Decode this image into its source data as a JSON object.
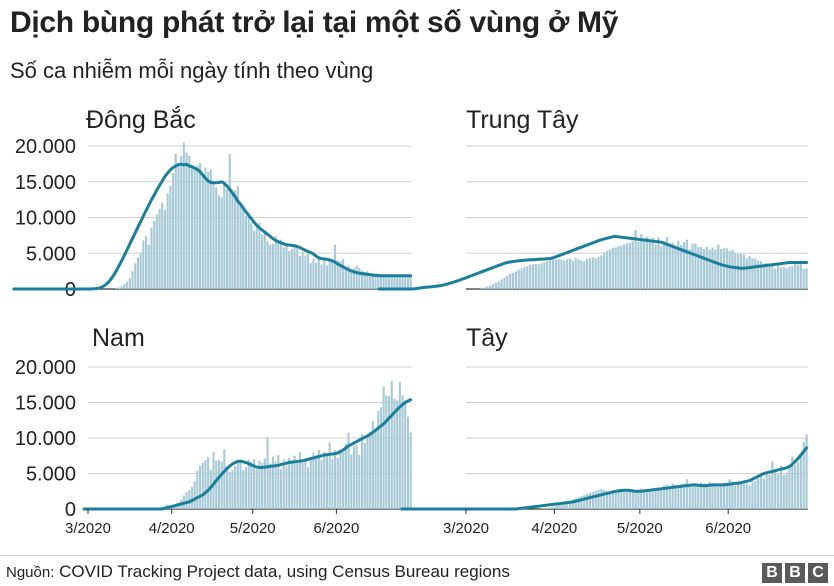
{
  "title": "Dịch bùng phát trở lại tại một số vùng ở Mỹ",
  "subtitle": "Số ca nhiễm mỗi ngày tính theo vùng",
  "source_label": "Nguồn:",
  "source_text": "COVID Tracking Project data, using Census Bureau regions",
  "logo_text": [
    "B",
    "B",
    "C"
  ],
  "colors": {
    "bar": "#a8cad6",
    "line": "#1a7f9c",
    "grid": "#d0d0d0",
    "axis": "#333333"
  },
  "chart_data": [
    {
      "type": "bar",
      "title": "Đông Bắc",
      "ylim": [
        0,
        20000
      ],
      "yticks": [
        "20.000",
        "15.000",
        "10.000",
        "5.000",
        "0"
      ],
      "xticks": [],
      "bars": [
        0,
        0,
        0,
        0,
        0,
        0,
        0,
        0,
        0,
        0,
        100,
        200,
        400,
        700,
        1000,
        1500,
        2500,
        3600,
        4400,
        5100,
        6800,
        7400,
        6200,
        8600,
        9500,
        10400,
        11200,
        12100,
        11000,
        13400,
        14400,
        16200,
        18900,
        17300,
        18600,
        20500,
        19100,
        18600,
        17000,
        16700,
        17300,
        17600,
        16200,
        17000,
        16400,
        16700,
        15000,
        14200,
        13100,
        12800,
        14900,
        14000,
        18900,
        13900,
        13800,
        14400,
        12000,
        11300,
        10200,
        10700,
        9300,
        8100,
        8600,
        9300,
        7600,
        7900,
        6700,
        6200,
        6300,
        7400,
        6700,
        6900,
        5800,
        6400,
        5300,
        5600,
        6100,
        5700,
        4600,
        5200,
        4700,
        5000,
        3600,
        4200,
        3700,
        4600,
        3400,
        4300,
        3300,
        4100,
        3800,
        6200,
        4000,
        3900,
        4200,
        3000,
        3300,
        2700,
        2900,
        3300,
        3000,
        2600,
        2400,
        2500,
        2200,
        2200,
        2100,
        2000,
        1900,
        2000,
        1800,
        1900,
        1900,
        1900,
        2000,
        1800,
        1800,
        1700,
        1800,
        1700
      ],
      "trend": [
        0,
        0,
        0,
        0,
        0,
        0,
        0,
        0,
        0,
        0,
        0,
        0,
        0,
        0,
        0,
        0,
        0,
        0,
        0,
        0,
        0,
        0,
        0,
        0,
        0,
        0,
        0,
        0,
        0,
        10,
        30,
        80,
        170,
        330,
        580,
        930,
        1380,
        1930,
        2550,
        3240,
        3980,
        4740,
        5520,
        6300,
        7090,
        7880,
        8650,
        9420,
        10190,
        10970,
        11720,
        12460,
        13150,
        13830,
        14500,
        15130,
        15730,
        16210,
        16630,
        17000,
        17200,
        17400,
        17450,
        17350,
        17420,
        17200,
        17100,
        16900,
        16700,
        16400,
        15950,
        15500,
        15100,
        14900,
        14850,
        14860,
        14900,
        15000,
        14750,
        14400,
        13950,
        13400,
        12900,
        12300,
        11850,
        11300,
        10800,
        10300,
        9850,
        9350,
        8900,
        8550,
        8250,
        7950,
        7650,
        7350,
        7050,
        6800,
        6600,
        6450,
        6300,
        6200,
        6150,
        6100,
        6050,
        5950,
        5800,
        5600,
        5400,
        5250,
        5100,
        4900,
        4600,
        4350,
        4250,
        4200,
        4150,
        4050,
        3950,
        3750,
        3500,
        3300,
        3100,
        2900,
        2700,
        2550,
        2400,
        2300,
        2200,
        2150,
        2100,
        2050,
        2000,
        1950,
        1900,
        1900,
        1850,
        1850,
        1850,
        1850,
        1850,
        1850,
        1850,
        1850,
        1850,
        1850,
        1850,
        1850
      ]
    },
    {
      "type": "bar",
      "title": "Trung Tây",
      "ylim": [
        0,
        20000
      ],
      "yticks": [],
      "xticks": [],
      "bars": [
        0,
        0,
        0,
        0,
        0,
        100,
        200,
        350,
        500,
        700,
        900,
        1100,
        1350,
        1600,
        1850,
        2100,
        2250,
        2450,
        2700,
        2900,
        3100,
        3200,
        3350,
        3450,
        3500,
        3450,
        3600,
        3700,
        3900,
        4000,
        4100,
        4150,
        4200,
        4100,
        4000,
        4150,
        4250,
        3950,
        4300,
        4150,
        4000,
        3900,
        4200,
        4300,
        4450,
        4300,
        4500,
        4700,
        5100,
        5300,
        5550,
        5750,
        5800,
        6000,
        6100,
        6250,
        6400,
        6500,
        6750,
        8250,
        6600,
        7700,
        6900,
        7300,
        6800,
        7150,
        6250,
        7200,
        6000,
        6500,
        7300,
        6400,
        6500,
        5800,
        6750,
        6150,
        6550,
        6900,
        5600,
        6350,
        6400,
        5900,
        5850,
        5600,
        5900,
        5500,
        5800,
        5500,
        6200,
        5600,
        5700,
        5700,
        5300,
        5500,
        5100,
        4900,
        4900,
        4800,
        4300,
        4600,
        4300,
        4300,
        4000,
        3900,
        3600,
        3600,
        3400,
        3300,
        2800,
        3300,
        3000,
        3100,
        2900,
        3100,
        3200,
        3500,
        3400,
        3600,
        2800,
        2900
      ],
      "trend": [
        0,
        0,
        0,
        0,
        0,
        0,
        0,
        0,
        0,
        0,
        0,
        0,
        20,
        60,
        120,
        180,
        220,
        260,
        300,
        340,
        380,
        430,
        500,
        600,
        700,
        820,
        940,
        1080,
        1200,
        1350,
        1500,
        1650,
        1800,
        1950,
        2100,
        2250,
        2400,
        2550,
        2700,
        2850,
        3000,
        3150,
        3300,
        3450,
        3600,
        3700,
        3780,
        3850,
        3900,
        3950,
        4000,
        4020,
        4050,
        4080,
        4100,
        4120,
        4150,
        4180,
        4200,
        4220,
        4250,
        4350,
        4500,
        4650,
        4800,
        4950,
        5100,
        5250,
        5400,
        5550,
        5700,
        5850,
        6000,
        6150,
        6300,
        6450,
        6600,
        6750,
        6900,
        7000,
        7100,
        7200,
        7300,
        7350,
        7300,
        7250,
        7200,
        7150,
        7100,
        7050,
        7000,
        6950,
        6900,
        6850,
        6800,
        6750,
        6700,
        6650,
        6600,
        6550,
        6400,
        6250,
        6100,
        5950,
        5800,
        5650,
        5500,
        5350,
        5200,
        5050,
        4900,
        4750,
        4600,
        4450,
        4300,
        4150,
        4000,
        3850,
        3700,
        3550,
        3400,
        3300,
        3200,
        3100,
        3050,
        3000,
        2950,
        2900,
        2900,
        2950,
        3000,
        3050,
        3100,
        3150,
        3200,
        3250,
        3300,
        3350,
        3400,
        3450,
        3500,
        3550,
        3600,
        3650,
        3700,
        3700,
        3700,
        3700,
        3700,
        3700,
        3700
      ]
    },
    {
      "type": "bar",
      "title": "Nam",
      "ylim": [
        0,
        20000
      ],
      "yticks": [
        "20.000",
        "15.000",
        "10.000",
        "5.000",
        "0"
      ],
      "xticks": [
        "3/2020",
        "4/2020",
        "5/2020",
        "6/2020"
      ],
      "bars": [
        0,
        0,
        0,
        0,
        0,
        100,
        200,
        300,
        500,
        600,
        300,
        200,
        600,
        900,
        1300,
        1900,
        2400,
        2700,
        3100,
        3900,
        5400,
        6100,
        6500,
        6900,
        7300,
        5500,
        8000,
        6800,
        6900,
        6700,
        8400,
        6000,
        5200,
        5500,
        6000,
        6800,
        6900,
        5500,
        5900,
        6900,
        6600,
        7000,
        5600,
        6800,
        6500,
        7100,
        10100,
        6400,
        7400,
        6700,
        7600,
        5600,
        7000,
        6000,
        7200,
        6800,
        7500,
        6700,
        8000,
        6600,
        7100,
        5900,
        7100,
        7900,
        7500,
        8300,
        6900,
        8000,
        7500,
        9400,
        7000,
        8300,
        7200,
        8200,
        8000,
        9200,
        10700,
        7700,
        8800,
        9000,
        7600,
        10500,
        9300,
        10100,
        10900,
        12400,
        11200,
        13800,
        14300,
        17200,
        16000,
        15900,
        18000,
        15500,
        15300,
        17900,
        16000,
        15400,
        13000,
        10800
      ],
      "trend": [
        0,
        0,
        0,
        0,
        0,
        0,
        0,
        0,
        0,
        0,
        0,
        0,
        0,
        0,
        0,
        0,
        0,
        0,
        0,
        0,
        0,
        0,
        0,
        0,
        0,
        0,
        0,
        0,
        0,
        0,
        100,
        200,
        300,
        400,
        500,
        600,
        700,
        800,
        900,
        1000,
        1200,
        1400,
        1600,
        1800,
        2000,
        2300,
        2650,
        3050,
        3500,
        4000,
        4450,
        4900,
        5300,
        5700,
        6050,
        6350,
        6550,
        6700,
        6750,
        6650,
        6550,
        6400,
        6200,
        6050,
        5900,
        5850,
        5850,
        5900,
        5950,
        6000,
        6050,
        6100,
        6150,
        6250,
        6350,
        6450,
        6550,
        6600,
        6650,
        6700,
        6750,
        6800,
        6900,
        7000,
        7100,
        7200,
        7300,
        7400,
        7500,
        7600,
        7650,
        7700,
        7750,
        7800,
        7900,
        8100,
        8300,
        8600,
        8900,
        9100,
        9300,
        9500,
        9700,
        9900,
        10100,
        10300,
        10500,
        10800,
        11100,
        11400,
        11700,
        12000,
        12400,
        12800,
        13200,
        13600,
        14000,
        14400,
        14700,
        15000,
        15200,
        15400
      ]
    },
    {
      "type": "bar",
      "title": "Tây",
      "ylim": [
        0,
        20000
      ],
      "yticks": [],
      "xticks": [
        "3/2020",
        "4/2020",
        "5/2020",
        "6/2020"
      ],
      "bars": [
        0,
        0,
        0,
        0,
        0,
        0,
        50,
        100,
        150,
        200,
        300,
        450,
        600,
        750,
        900,
        1050,
        1200,
        1350,
        1500,
        1650,
        1800,
        1950,
        2100,
        2250,
        2400,
        2600,
        2700,
        2800,
        2650,
        2500,
        2400,
        2600,
        2500,
        2700,
        2600,
        2500,
        2400,
        2500,
        2800,
        2700,
        2600,
        2900,
        2700,
        2800,
        2500,
        2700,
        2600,
        2900,
        3000,
        3300,
        3400,
        3100,
        3600,
        3400,
        3200,
        3500,
        3600,
        4200,
        3400,
        3300,
        3200,
        3500,
        3700,
        3600,
        3300,
        3800,
        3400,
        3600,
        3500,
        3200,
        3700,
        3400,
        4200,
        3900,
        3300,
        3600,
        3700,
        3500,
        3600,
        3300,
        3900,
        4000,
        4300,
        4600,
        4300,
        5200,
        4800,
        6700,
        5400,
        4900,
        6100,
        4800,
        5100,
        5800,
        7400,
        6200,
        6600,
        7900,
        9400,
        10500
      ],
      "trend": [
        0,
        0,
        0,
        0,
        0,
        0,
        0,
        0,
        0,
        0,
        0,
        0,
        0,
        0,
        0,
        0,
        0,
        0,
        0,
        0,
        0,
        0,
        0,
        0,
        0,
        0,
        0,
        0,
        0,
        0,
        0,
        0,
        0,
        0,
        0,
        0,
        0,
        0,
        0,
        0,
        0,
        50,
        100,
        150,
        200,
        250,
        300,
        350,
        400,
        450,
        500,
        550,
        600,
        650,
        700,
        750,
        800,
        850,
        900,
        950,
        1000,
        1100,
        1200,
        1300,
        1400,
        1500,
        1600,
        1700,
        1800,
        1900,
        2000,
        2100,
        2200,
        2300,
        2400,
        2500,
        2550,
        2600,
        2650,
        2650,
        2600,
        2550,
        2500,
        2500,
        2500,
        2550,
        2600,
        2650,
        2700,
        2750,
        2800,
        2850,
        2900,
        2950,
        3000,
        3050,
        3100,
        3150,
        3200,
        3250,
        3300,
        3350,
        3400,
        3400,
        3350,
        3300,
        3300,
        3300,
        3350,
        3400,
        3400,
        3400,
        3400,
        3400,
        3450,
        3500,
        3550,
        3600,
        3650,
        3700,
        3800,
        3900,
        4000,
        4200,
        4400,
        4600,
        4800,
        5000,
        5100,
        5200,
        5300,
        5400,
        5500,
        5600,
        5700,
        5800,
        6000,
        6300,
        6700,
        7100,
        7600,
        8100,
        8600
      ]
    }
  ]
}
